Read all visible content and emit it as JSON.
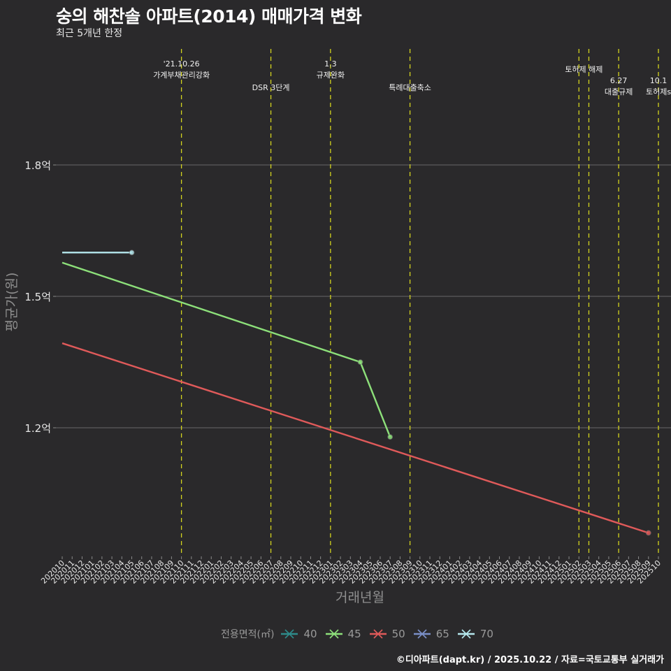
{
  "header": {
    "title": "숭의 해찬솔 아파트(2014) 매매가격 변화",
    "subtitle": "최근 5개년 한정"
  },
  "caption": "©디아파트(dapt.kr) / 2025.10.22 / 자료=국토교통부 실거래가",
  "legend": {
    "title": "전용면적(㎡)",
    "items": [
      {
        "label": "40",
        "color": "#2e8b8b"
      },
      {
        "label": "45",
        "color": "#8de07a"
      },
      {
        "label": "50",
        "color": "#e05a5a"
      },
      {
        "label": "65",
        "color": "#7a8fc8"
      },
      {
        "label": "70",
        "color": "#b5e8ee"
      }
    ]
  },
  "chart_data": {
    "type": "line",
    "title": "숭의 해찬솔 아파트(2014) 매매가격 변화",
    "subtitle": "최근 5개년 한정",
    "xlabel": "거래년월",
    "ylabel": "평균가(원)",
    "x_ticks": [
      "202010",
      "202011",
      "202012",
      "202101",
      "202102",
      "202103",
      "202104",
      "202105",
      "202106",
      "202107",
      "202108",
      "202109",
      "202110",
      "202111",
      "202112",
      "202201",
      "202202",
      "202203",
      "202204",
      "202205",
      "202206",
      "202207",
      "202208",
      "202209",
      "202210",
      "202211",
      "202212",
      "202301",
      "202302",
      "202303",
      "202304",
      "202305",
      "202306",
      "202307",
      "202308",
      "202309",
      "202310",
      "202311",
      "202312",
      "202401",
      "202402",
      "202403",
      "202404",
      "202405",
      "202406",
      "202407",
      "202408",
      "202409",
      "202410",
      "202411",
      "202412",
      "202501",
      "202502",
      "202503",
      "202504",
      "202505",
      "202506",
      "202507",
      "202508",
      "202509",
      "202510"
    ],
    "y_ticks": [
      {
        "value": 1.2,
        "label": "1.2억"
      },
      {
        "value": 1.5,
        "label": "1.5억"
      },
      {
        "value": 1.8,
        "label": "1.8억"
      }
    ],
    "ylim": [
      0.91,
      1.92
    ],
    "grid": true,
    "legend_position": "bottom",
    "series": [
      {
        "name": "45",
        "color": "#8de07a",
        "points": [
          [
            "202010",
            1.577
          ],
          [
            "202304",
            1.35
          ],
          [
            "202307",
            1.179
          ]
        ],
        "markers": [
          "202304",
          "202307"
        ]
      },
      {
        "name": "50",
        "color": "#e05a5a",
        "points": [
          [
            "202010",
            1.393
          ],
          [
            "202509",
            0.96
          ]
        ],
        "markers": [
          "202509"
        ]
      },
      {
        "name": "70",
        "color": "#b5e8ee",
        "points": [
          [
            "202010",
            1.6
          ],
          [
            "202105",
            1.6
          ]
        ],
        "markers": [
          "202105"
        ]
      }
    ],
    "annotations": [
      {
        "x": "202110",
        "lines": [
          "'21.10.26",
          "가계부채관리강화"
        ],
        "row": 0
      },
      {
        "x": "202207",
        "lines": [
          "DSR 3단계"
        ],
        "row": 2
      },
      {
        "x": "202301",
        "lines": [
          "1.3",
          "규제완화"
        ],
        "row": 0
      },
      {
        "x": "202309",
        "lines": [
          "특례대출축소"
        ],
        "row": 2
      },
      {
        "x": "202502",
        "lines": [
          "토허제 해제"
        ],
        "row": 1,
        "span_to": "202503"
      },
      {
        "x": "202503",
        "lines": [],
        "row": 1
      },
      {
        "x": "202506",
        "lines": [
          "6.27",
          "대출규제"
        ],
        "row": 1.5
      },
      {
        "x": "202510",
        "lines": [
          "10.1",
          "토허제s"
        ],
        "row": 1.5
      }
    ]
  }
}
